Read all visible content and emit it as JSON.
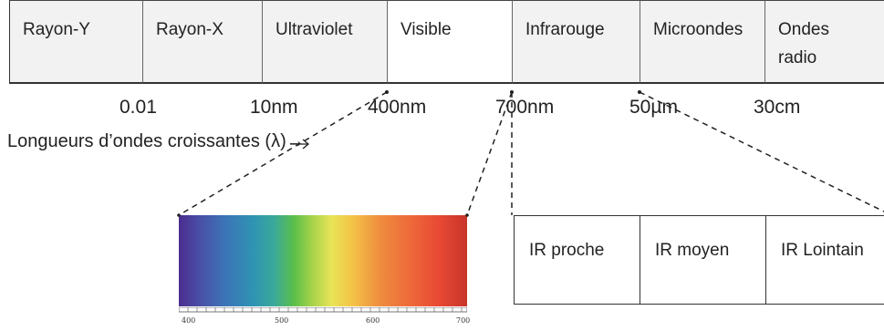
{
  "bands": [
    {
      "label": "Rayon-Y"
    },
    {
      "label": "Rayon-X"
    },
    {
      "label": "Ultraviolet"
    },
    {
      "label": "Visible"
    },
    {
      "label": "Infrarouge"
    },
    {
      "label": "Microondes"
    },
    {
      "label": "Ondes radio"
    }
  ],
  "boundaries": [
    "0.01",
    "10nm",
    "400nm",
    "700nm",
    "50µm",
    "30cm"
  ],
  "caption": "Longueurs d’ondes croissantes (λ)→",
  "visible_scale": [
    "400",
    "500",
    "600",
    "700"
  ],
  "ir_subbands": [
    "IR proche",
    "IR moyen",
    "IR Lointain"
  ],
  "colors": {
    "band_fill": "#f2f2f2",
    "line": "#333333"
  }
}
